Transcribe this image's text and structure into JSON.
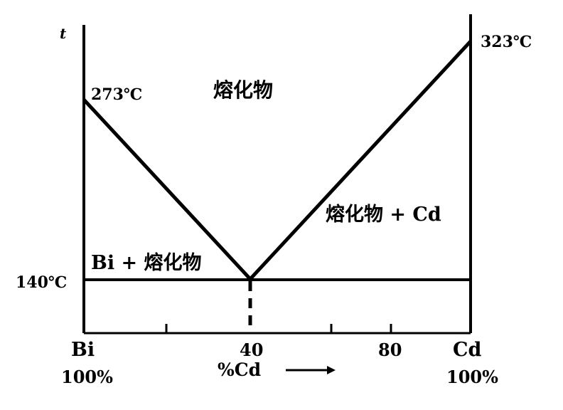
{
  "diagram": {
    "axis_symbol": "t",
    "labels": {
      "bi_melting_point": "273℃",
      "cd_melting_point": "323℃",
      "eutectic_temp": "140℃",
      "liquid_region": "熔化物",
      "liquid_plus_cd": "熔化物 + Cd",
      "bi_plus_liquid": "Bi + 熔化物"
    },
    "x_axis": {
      "left_top": "Bi",
      "left_bottom": "100%",
      "tick_40": "40",
      "tick_80": "80",
      "right_top": "Cd",
      "right_bottom": "100%",
      "axis_title": "%Cd"
    }
  }
}
